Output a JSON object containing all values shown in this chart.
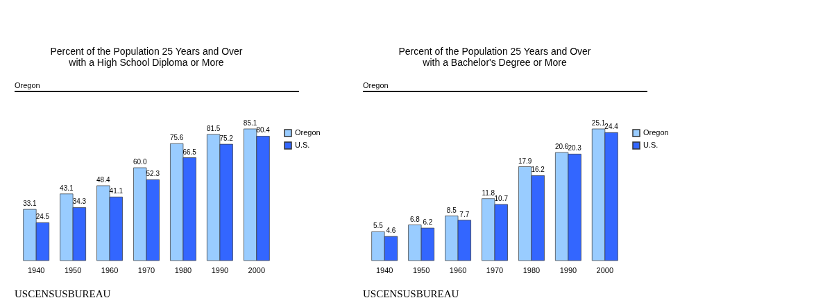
{
  "chart_data": [
    {
      "type": "bar",
      "title": "Percent of the Population 25 Years and Over with a High School Diploma or More",
      "annotations": [
        "Oregon",
        "USCENSUSBUREAU"
      ],
      "categories": [
        "1940",
        "1950",
        "1960",
        "1970",
        "1980",
        "1990",
        "2000"
      ],
      "series": [
        {
          "name": "Oregon",
          "color": "#99ccff",
          "values": [
            33.1,
            43.1,
            48.4,
            60.0,
            75.6,
            81.5,
            85.1
          ],
          "value_labels": [
            "33.1",
            "43.1",
            "48.4",
            "60.0",
            "75.6",
            "81.5",
            "85.1"
          ]
        },
        {
          "name": "U.S.",
          "color": "#3366ff",
          "values": [
            24.5,
            34.3,
            41.1,
            52.3,
            66.5,
            75.2,
            80.4
          ]
        }
      ],
      "data_labels": true,
      "legend": "right",
      "grid": false
    },
    {
      "type": "bar",
      "title": "Percent of the Population 25 Years and Over with a Bachelor's Degree or More",
      "annotations": [
        "Oregon",
        "USCENSUSBUREAU"
      ],
      "categories": [
        "1940",
        "1950",
        "1960",
        "1970",
        "1980",
        "1990",
        "2000"
      ],
      "series": [
        {
          "name": "Oregon",
          "color": "#99ccff",
          "values": [
            5.5,
            6.8,
            8.5,
            11.8,
            17.9,
            20.6,
            25.1
          ]
        },
        {
          "name": "U.S.",
          "color": "#3366ff",
          "values": [
            4.6,
            6.2,
            7.7,
            10.7,
            16.2,
            20.3,
            24.4
          ]
        }
      ],
      "data_labels": true,
      "legend": "right",
      "grid": false
    }
  ]
}
